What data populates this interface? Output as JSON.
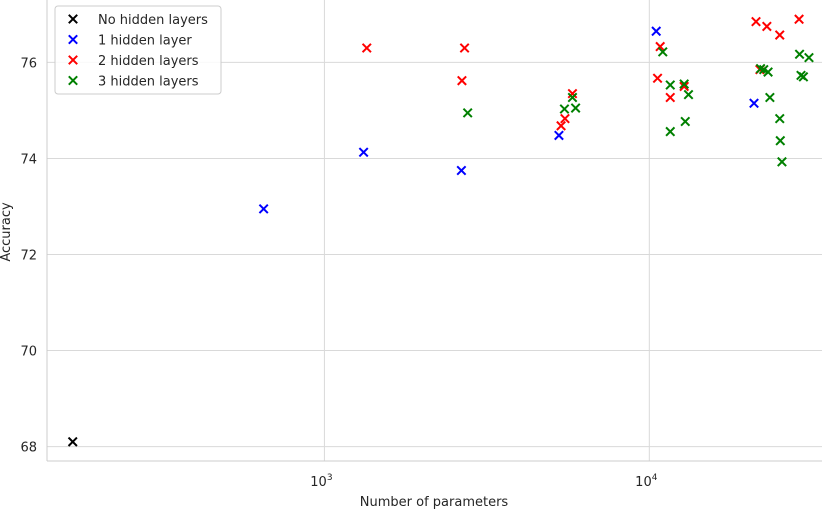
{
  "chart_data": {
    "type": "scatter",
    "title": "",
    "xlabel": "Number of parameters",
    "ylabel": "Accuracy",
    "xscale": "log",
    "xlim": [
      140,
      34000
    ],
    "ylim": [
      67.7,
      77.3
    ],
    "grid": true,
    "legend_position": "top-left",
    "x_ticks": [
      {
        "value": 1000,
        "base": "10",
        "exp": "3"
      },
      {
        "value": 10000,
        "base": "10",
        "exp": "4"
      }
    ],
    "y_ticks": [
      {
        "value": 68,
        "label": "68"
      },
      {
        "value": 70,
        "label": "70"
      },
      {
        "value": 72,
        "label": "72"
      },
      {
        "value": 74,
        "label": "74"
      },
      {
        "value": 76,
        "label": "76"
      }
    ],
    "series": [
      {
        "name": "No hidden layers",
        "color": "#000000",
        "marker": "x",
        "points": [
          [
            168,
            68.1
          ]
        ]
      },
      {
        "name": "1 hidden layer",
        "color": "#0000ff",
        "marker": "x",
        "points": [
          [
            650,
            72.95
          ],
          [
            1320,
            74.13
          ],
          [
            2640,
            73.75
          ],
          [
            5270,
            74.48
          ],
          [
            10500,
            76.65
          ],
          [
            21000,
            75.15
          ]
        ]
      },
      {
        "name": "2 hidden layers",
        "color": "#ff0000",
        "marker": "x",
        "points": [
          [
            1350,
            76.3
          ],
          [
            2700,
            76.3
          ],
          [
            2650,
            75.62
          ],
          [
            5800,
            75.35
          ],
          [
            5500,
            74.83
          ],
          [
            5350,
            74.68
          ],
          [
            10800,
            76.33
          ],
          [
            10600,
            75.67
          ],
          [
            11600,
            75.27
          ],
          [
            12800,
            75.5
          ],
          [
            21300,
            76.85
          ],
          [
            23000,
            76.75
          ],
          [
            25200,
            76.57
          ],
          [
            28900,
            76.9
          ],
          [
            21900,
            75.85
          ]
        ]
      },
      {
        "name": "3 hidden layers",
        "color": "#008000",
        "marker": "x",
        "points": [
          [
            2760,
            74.95
          ],
          [
            5480,
            75.03
          ],
          [
            5800,
            75.27
          ],
          [
            5930,
            75.05
          ],
          [
            11000,
            76.22
          ],
          [
            11600,
            75.53
          ],
          [
            11600,
            74.56
          ],
          [
            12800,
            75.55
          ],
          [
            13200,
            75.33
          ],
          [
            12900,
            74.77
          ],
          [
            22000,
            75.87
          ],
          [
            22500,
            75.85
          ],
          [
            23200,
            75.8
          ],
          [
            23500,
            75.27
          ],
          [
            25200,
            74.83
          ],
          [
            25300,
            74.37
          ],
          [
            25600,
            73.93
          ],
          [
            29000,
            76.17
          ],
          [
            31000,
            76.1
          ],
          [
            29300,
            75.73
          ],
          [
            29800,
            75.7
          ]
        ]
      }
    ]
  }
}
